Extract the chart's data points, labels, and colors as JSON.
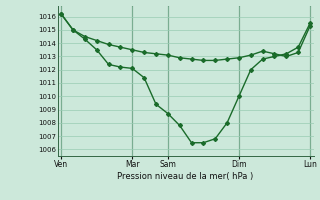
{
  "bg_color": "#cce8da",
  "grid_color": "#99ccb3",
  "line_color": "#1a6b2a",
  "xlabel": "Pression niveau de la mer( hPa )",
  "ylim": [
    1005.5,
    1016.8
  ],
  "yticks": [
    1006,
    1007,
    1008,
    1009,
    1010,
    1011,
    1012,
    1013,
    1014,
    1015,
    1016
  ],
  "xtick_labels": [
    "Ven",
    "Mar",
    "Sam",
    "Dim",
    "Lun"
  ],
  "xtick_positions": [
    0,
    6,
    9,
    15,
    21
  ],
  "vline_positions": [
    0,
    6,
    9,
    15,
    21
  ],
  "xlim": [
    -0.3,
    21.3
  ],
  "series1_x": [
    0,
    1,
    2,
    3,
    4,
    5,
    6,
    7,
    8,
    9,
    10,
    11,
    12,
    13,
    14,
    15,
    16,
    17,
    18,
    19,
    20,
    21
  ],
  "series1_y": [
    1016.2,
    1015.0,
    1014.5,
    1014.2,
    1013.9,
    1013.7,
    1013.5,
    1013.3,
    1013.2,
    1013.1,
    1012.9,
    1012.8,
    1012.7,
    1012.7,
    1012.8,
    1012.9,
    1013.1,
    1013.4,
    1013.2,
    1013.0,
    1013.3,
    1015.3
  ],
  "series2_x": [
    0,
    1,
    2,
    3,
    4,
    5,
    6,
    7,
    8,
    9,
    10,
    11,
    12,
    13,
    14,
    15,
    16,
    17,
    18,
    19,
    20,
    21
  ],
  "series2_y": [
    1016.2,
    1015.0,
    1014.3,
    1013.5,
    1012.4,
    1012.2,
    1012.1,
    1011.4,
    1009.4,
    1008.7,
    1007.8,
    1006.5,
    1006.5,
    1006.8,
    1008.0,
    1010.0,
    1012.0,
    1012.8,
    1013.0,
    1013.2,
    1013.7,
    1015.5
  ],
  "marker": "D",
  "marker_size": 2.0,
  "linewidth": 1.0
}
